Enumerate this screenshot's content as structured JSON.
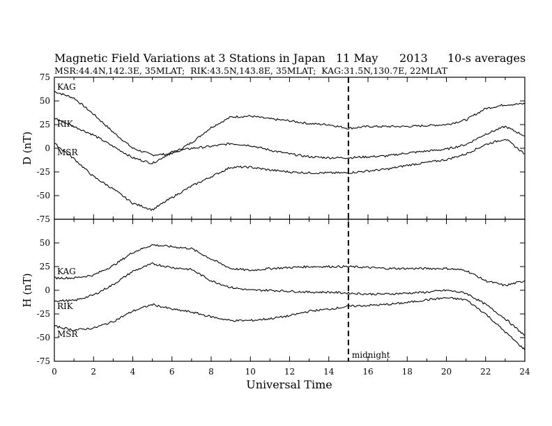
{
  "header": {
    "title": "Magnetic Field Variations at 3 Stations in Japan",
    "date_day": "11 May",
    "date_year": "2013",
    "averaging": "10-s averages",
    "stations_line": "MSR:44.4N,142.3E, 35MLAT;  RIK:43.5N,143.8E, 35MLAT;  KAG:31.5N,130.7E, 22MLAT"
  },
  "xlabel": "Universal Time",
  "marker": {
    "x": 15,
    "label": "midnight"
  },
  "chart_data": [
    {
      "type": "line",
      "panel": "top",
      "ylabel": "D (nT)",
      "xlim": [
        0,
        24
      ],
      "ylim": [
        -75,
        75
      ],
      "xticks": [
        0,
        2,
        4,
        6,
        8,
        10,
        12,
        14,
        16,
        18,
        20,
        22,
        24
      ],
      "yticks": [
        -75,
        -50,
        -25,
        0,
        25,
        50,
        75
      ],
      "series": [
        {
          "name": "KAG",
          "x": [
            0,
            1,
            2,
            3,
            4,
            5,
            6,
            7,
            8,
            9,
            10,
            11,
            12,
            13,
            14,
            15,
            16,
            17,
            18,
            19,
            20,
            21,
            22,
            23,
            24
          ],
          "values": [
            60,
            53,
            36,
            17,
            0,
            -7,
            -6,
            6,
            22,
            33,
            34,
            31,
            29,
            26,
            25,
            21,
            23,
            23,
            23,
            24,
            25,
            30,
            42,
            46,
            47
          ]
        },
        {
          "name": "RIK",
          "x": [
            0,
            1,
            2,
            3,
            4,
            5,
            6,
            7,
            8,
            9,
            10,
            11,
            12,
            13,
            14,
            15,
            16,
            17,
            18,
            19,
            20,
            21,
            22,
            23,
            24
          ],
          "values": [
            32,
            23,
            14,
            2,
            -10,
            -16,
            -4,
            0,
            2,
            5,
            3,
            -2,
            -6,
            -9,
            -10,
            -10,
            -9,
            -8,
            -5,
            -3,
            -1,
            4,
            15,
            23,
            13
          ]
        },
        {
          "name": "MSR",
          "x": [
            0,
            1,
            2,
            3,
            4,
            5,
            6,
            7,
            8,
            9,
            10,
            11,
            12,
            13,
            14,
            15,
            16,
            17,
            18,
            19,
            20,
            21,
            22,
            23,
            24
          ],
          "values": [
            5,
            -11,
            -30,
            -43,
            -58,
            -65,
            -52,
            -40,
            -30,
            -20,
            -20,
            -23,
            -25,
            -26,
            -26,
            -26,
            -24,
            -22,
            -18,
            -15,
            -12,
            -6,
            4,
            10,
            -6
          ]
        }
      ]
    },
    {
      "type": "line",
      "panel": "bottom",
      "ylabel": "H (nT)",
      "xlim": [
        0,
        24
      ],
      "ylim": [
        -75,
        75
      ],
      "xticks": [
        0,
        2,
        4,
        6,
        8,
        10,
        12,
        14,
        16,
        18,
        20,
        22,
        24
      ],
      "yticks": [
        -75,
        -50,
        -25,
        0,
        25,
        50,
        75
      ],
      "series": [
        {
          "name": "KAG",
          "x": [
            0,
            1,
            2,
            3,
            4,
            5,
            6,
            7,
            8,
            9,
            10,
            11,
            12,
            13,
            14,
            15,
            16,
            17,
            18,
            19,
            20,
            21,
            22,
            23,
            24
          ],
          "values": [
            13,
            13,
            16,
            26,
            40,
            48,
            46,
            44,
            33,
            23,
            21,
            23,
            24,
            25,
            25,
            25,
            24,
            23,
            23,
            23,
            23,
            21,
            10,
            5,
            10
          ]
        },
        {
          "name": "RIK",
          "x": [
            0,
            1,
            2,
            3,
            4,
            5,
            6,
            7,
            8,
            9,
            10,
            11,
            12,
            13,
            14,
            15,
            16,
            17,
            18,
            19,
            20,
            21,
            22,
            23,
            24
          ],
          "values": [
            -11,
            -11,
            -5,
            6,
            20,
            28,
            24,
            22,
            10,
            3,
            0,
            0,
            -1,
            -2,
            -2,
            -3,
            -4,
            -4,
            -3,
            -2,
            0,
            -3,
            -15,
            -30,
            -48
          ]
        },
        {
          "name": "MSR",
          "x": [
            0,
            1,
            2,
            3,
            4,
            5,
            6,
            7,
            8,
            9,
            10,
            11,
            12,
            13,
            14,
            15,
            16,
            17,
            18,
            19,
            20,
            21,
            22,
            23,
            24
          ],
          "values": [
            -38,
            -42,
            -40,
            -33,
            -22,
            -15,
            -20,
            -23,
            -28,
            -32,
            -32,
            -30,
            -27,
            -22,
            -20,
            -17,
            -16,
            -15,
            -13,
            -10,
            -8,
            -10,
            -25,
            -44,
            -63
          ]
        }
      ]
    }
  ]
}
